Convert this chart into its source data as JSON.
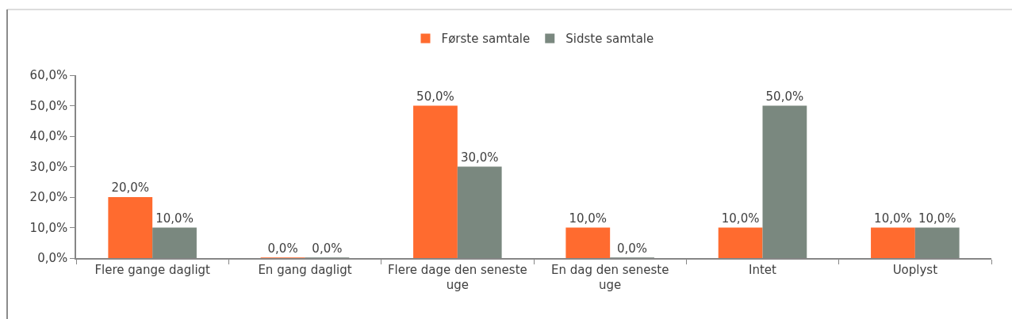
{
  "chart_data": {
    "type": "bar",
    "categories": [
      "Flere gange dagligt",
      "En gang dagligt",
      "Flere dage den seneste uge",
      "En dag den seneste uge",
      "Intet",
      "Uoplyst"
    ],
    "series": [
      {
        "name": "Første samtale",
        "color": "#ff6b2f",
        "values": [
          20,
          0,
          50,
          10,
          10,
          10
        ],
        "value_labels": [
          "20,0%",
          "0,0%",
          "50,0%",
          "10,0%",
          "10,0%",
          "10,0%"
        ]
      },
      {
        "name": "Sidste samtale",
        "color": "#7a887f",
        "values": [
          10,
          0,
          30,
          0,
          50,
          10
        ],
        "value_labels": [
          "10,0%",
          "0,0%",
          "30,0%",
          "0,0%",
          "50,0%",
          "10,0%"
        ]
      }
    ],
    "ylim": [
      0,
      60
    ],
    "yticks": [
      {
        "value": 0,
        "label": "0,0%"
      },
      {
        "value": 10,
        "label": "10,0%"
      },
      {
        "value": 20,
        "label": "20,0%"
      },
      {
        "value": 30,
        "label": "30,0%"
      },
      {
        "value": 40,
        "label": "40,0%"
      },
      {
        "value": 50,
        "label": "50,0%"
      },
      {
        "value": 60,
        "label": "60,0%"
      }
    ],
    "legend": "top"
  }
}
